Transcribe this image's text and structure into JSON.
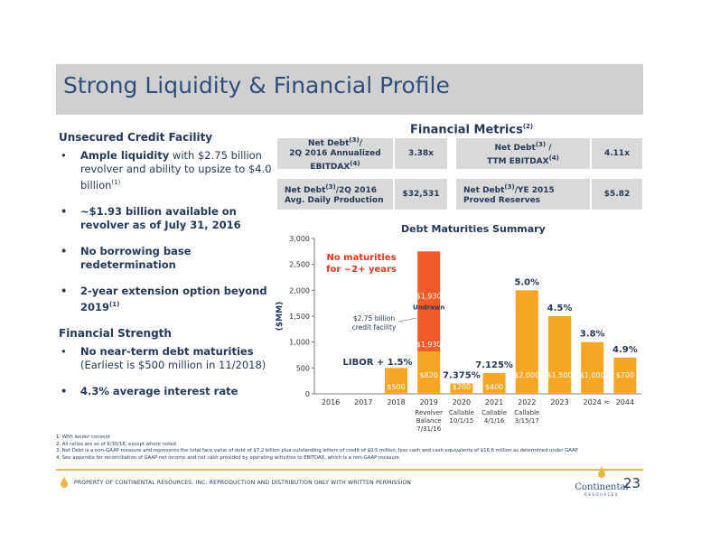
{
  "title": "Strong Liquidity & Financial Profile",
  "left": {
    "credit_head": "Unsecured Credit Facility",
    "bullet1_bold": "Ample liquidity",
    "bullet1_rest": " with $2.75 billion revolver and ability to upsize to $4.0 billion",
    "bullet1_sup": "(1)",
    "bullet2": "~$1.93 billion available on revolver as of July 31, 2016",
    "bullet3": "No borrowing base redetermination",
    "bullet4": "2-year extension option beyond 2019",
    "bullet4_sup": "(1)",
    "strength_head": "Financial Strength",
    "bullet5_bold": "No near-term debt maturities",
    "bullet5_rest": "(Earliest is $500 million in 11/2018)",
    "bullet6": "4.3% average interest rate",
    "bullet_glyph": "•"
  },
  "metrics": {
    "title": "Financial Metrics",
    "title_sup": "(2)",
    "r1c1_a": "Net Debt",
    "r1c1_sup": "(3)",
    "r1c1_b": "/",
    "r1c1_c": "2Q 2016 Annualized EBITDAX",
    "r1c1_sup2": "(4)",
    "r1v1": "3.38x",
    "r1c2_a": "Net Debt",
    "r1c2_sup": "(3)",
    "r1c2_b": " /",
    "r1c2_c": "TTM EBITDAX",
    "r1c2_sup2": "(4)",
    "r1v2": "4.11x",
    "r2c1_a": "Net Debt",
    "r2c1_sup": "(3)",
    "r2c1_b": "/2Q 2016",
    "r2c1_c": "Avg. Daily Production",
    "r2v1": "$32,531",
    "r2c2_a": "Net Debt",
    "r2c2_sup": "(3)",
    "r2c2_b": "/YE 2015",
    "r2c2_c": "Proved Reserves",
    "r2v2": "$5.82"
  },
  "chart_title": "Debt Maturities Summary",
  "chart_data": {
    "type": "bar",
    "categories": [
      "2016",
      "2017",
      "2018",
      "2019",
      "2020",
      "2021",
      "2022",
      "2023",
      "2024",
      "2044"
    ],
    "ylabel": "($MM)",
    "ylim": [
      0,
      3000
    ],
    "yticks": [
      "0",
      "500",
      "1,000",
      "1,500",
      "2,000",
      "2,500",
      "3,000"
    ],
    "series": [
      {
        "values": [
          0,
          0,
          500,
          820,
          200,
          400,
          2000,
          1500,
          1000,
          700
        ],
        "labels": [
          "",
          "",
          "$500",
          "$820",
          "$200",
          "$400",
          "$2,000",
          "$1,500",
          "$1,000",
          "$700"
        ],
        "color": "#f5a623"
      },
      {
        "values": [
          0,
          0,
          0,
          1930,
          0,
          0,
          0,
          0,
          0,
          0
        ],
        "labels": [
          "",
          "",
          "",
          "$1,930",
          "",
          "",
          "",
          "",
          "",
          ""
        ],
        "color": "#f15a29"
      }
    ],
    "rates": [
      "",
      "",
      "",
      "",
      "7.375%",
      "7.125%",
      "5.0%",
      "4.5%",
      "3.8%",
      "4.9%"
    ],
    "sublabels": [
      "",
      "",
      "",
      "Revolver\nBalance\n7/31/16",
      "Callable\n10/1/15",
      "Callable\n4/1/16",
      "Callable\n3/15/17",
      "",
      "",
      ""
    ],
    "undrawn_label": "Undrawn",
    "no_maturities": "No maturities\nfor ~2+ years",
    "facility_note": "$2.75 billion\ncredit facility",
    "libor": "LIBOR + 1.5%",
    "axis_break": "≈"
  },
  "footnotes": [
    "1.  With lender consent",
    "2.  All ratios are as of 6/30/16, except where noted",
    "3.  Net Debt is a non-GAAP measure and represents the total face value of debt of $7.2 billion plus outstanding letters of credit of $0.5 million, less cash and cash equivalents of $16.6 million as determined under GAAP",
    "4.  See appendix for reconciliation of GAAP net income and net cash provided by operating activities to EBITDAX, which is a non-GAAP measure"
  ],
  "footer": "PROPERTY OF CONTINENTAL RESOURCES, INC.  REPRODUCTION AND DISTRIBUTION ONLY WITH WRITTEN PERMISSION",
  "page_number": "23",
  "logo_name": "Continental",
  "logo_sub": "RESOURCES",
  "colors": {
    "title": "#2e4f7e",
    "bar": "#f5a623",
    "undrawn": "#f15a29",
    "accent_red": "#e8341c",
    "rule": "#e8b84b"
  }
}
